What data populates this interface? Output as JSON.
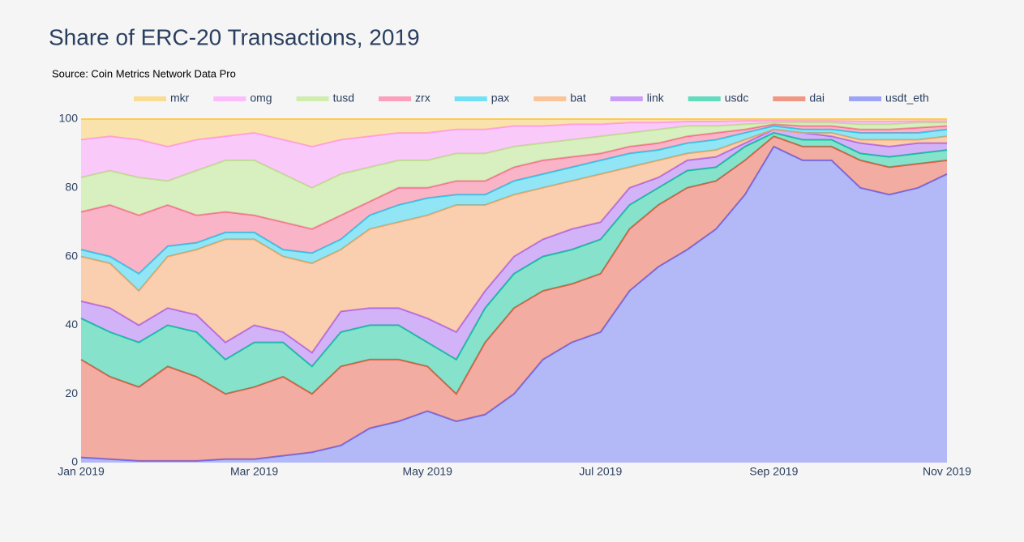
{
  "chart_data": {
    "type": "stacked-area",
    "title": "Share of ERC-20 Transactions, 2019",
    "subtitle": "Source: Coin Metrics Network Data Pro",
    "categories": [
      "Jan 2019",
      null,
      null,
      null,
      null,
      null,
      "Mar 2019",
      null,
      null,
      null,
      null,
      null,
      "May 2019",
      null,
      null,
      null,
      null,
      null,
      "Jul 2019",
      null,
      null,
      null,
      null,
      null,
      "Sep 2019",
      null,
      null,
      null,
      null,
      null,
      "Nov 2019"
    ],
    "ylim": [
      0,
      100
    ],
    "yticks": [
      0,
      20,
      40,
      60,
      80,
      100
    ],
    "series": [
      {
        "name": "mkr",
        "color": "#fecb52",
        "values": [
          6,
          5,
          6,
          8,
          6,
          5,
          4,
          6,
          8,
          6,
          5,
          4,
          4,
          3,
          3,
          2,
          2,
          1.5,
          1.5,
          1,
          1,
          0.7,
          0.7,
          0.5,
          0.4,
          0.5,
          0.5,
          0.7,
          0.7,
          0.6,
          0.6
        ]
      },
      {
        "name": "omg",
        "color": "#ff97ff",
        "values": [
          11,
          10,
          11,
          10,
          9,
          7,
          8,
          10,
          12,
          10,
          9,
          8,
          8,
          7,
          7,
          6,
          5,
          4.5,
          3.5,
          3,
          2,
          1.3,
          1.3,
          1,
          0.6,
          0.5,
          0.5,
          0.8,
          0.8,
          0.4,
          0.4
        ]
      },
      {
        "name": "tusd",
        "color": "#b6e880",
        "values": [
          10,
          10,
          11,
          7,
          13,
          15,
          16,
          14,
          12,
          12,
          10,
          8,
          8,
          8,
          8,
          6,
          5,
          5,
          5,
          4,
          4,
          3,
          2,
          1.5,
          0.5,
          1,
          1,
          1.5,
          1.5,
          1.5,
          1
        ]
      },
      {
        "name": "zrx",
        "color": "#ff6692",
        "values": [
          11,
          15,
          17,
          12,
          8,
          6,
          5,
          8,
          7,
          7,
          4,
          5,
          3,
          4,
          4,
          4,
          4,
          3,
          2,
          2,
          2,
          2,
          2,
          1,
          0.5,
          1,
          1,
          1,
          1,
          1.5,
          1
        ]
      },
      {
        "name": "pax",
        "color": "#19d3f3",
        "values": [
          2,
          2,
          5,
          3,
          2,
          2,
          2,
          2,
          3,
          3,
          4,
          5,
          5,
          3,
          3,
          4,
          4,
          4,
          4,
          4,
          3,
          3,
          3,
          2,
          1,
          1,
          1,
          2,
          2,
          2,
          2
        ]
      },
      {
        "name": "bat",
        "color": "#ffa15a",
        "values": [
          13,
          13,
          10,
          15,
          19,
          30,
          25,
          22,
          26,
          18,
          23,
          25,
          30,
          37,
          25,
          18,
          15,
          14,
          14,
          6,
          5,
          2,
          2,
          1,
          0,
          0,
          1,
          1,
          2,
          1,
          2
        ]
      },
      {
        "name": "link",
        "color": "#ab63fa",
        "values": [
          5,
          7,
          5,
          5,
          5,
          5,
          5,
          3,
          4,
          6,
          5,
          5,
          7,
          8,
          5,
          5,
          5,
          6,
          5,
          5,
          3,
          3,
          3,
          1,
          1,
          2,
          1,
          3,
          3,
          3,
          2
        ]
      },
      {
        "name": "usdc",
        "color": "#00cc96",
        "values": [
          12,
          13,
          13,
          12,
          13,
          10,
          13,
          10,
          8,
          10,
          10,
          10,
          7,
          10,
          10,
          10,
          10,
          10,
          10,
          7,
          5,
          5,
          4,
          4,
          1,
          2,
          2,
          2,
          3,
          3,
          3
        ]
      },
      {
        "name": "dai",
        "color": "#ef553b",
        "values": [
          28.5,
          24,
          21.5,
          27.5,
          24.5,
          19,
          21,
          23,
          17,
          23,
          20,
          18,
          13,
          8,
          21,
          25,
          20,
          17,
          17,
          18,
          18,
          18,
          14,
          10,
          3,
          4,
          4,
          8,
          8,
          7,
          4
        ]
      },
      {
        "name": "usdt_eth",
        "color": "#636efa",
        "values": [
          1.5,
          1,
          0.5,
          0.5,
          0.5,
          1,
          1,
          2,
          3,
          5,
          10,
          12,
          15,
          12,
          14,
          20,
          30,
          35,
          38,
          50,
          57,
          62,
          68,
          78,
          92,
          88,
          88,
          80,
          78,
          80,
          84
        ]
      }
    ]
  }
}
